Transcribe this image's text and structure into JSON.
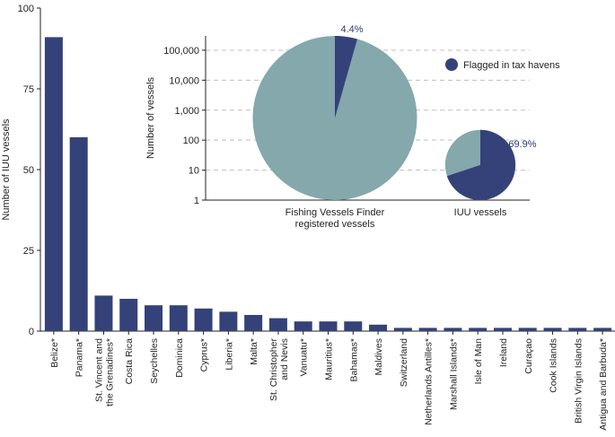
{
  "chart_data": [
    {
      "type": "bar",
      "ylabel": "Number of IUU vessels",
      "ylim": [
        0,
        100
      ],
      "yticks": [
        0,
        25,
        50,
        75,
        100
      ],
      "color": "#35427a",
      "categories": [
        "Belize*",
        "Panama*",
        "St. Vincent and|the Grenadines*",
        "Costa Rica",
        "Seychelles",
        "Dominica",
        "Cyprus*",
        "Liberia*",
        "Malta*",
        "St. Christopher|and Nevis",
        "Vanuatu*",
        "Mauritius*",
        "Bahamas*",
        "Maldives",
        "Switzerland",
        "Netherlands Antilles*",
        "Marshall Islands*",
        "Isle of Man",
        "Ireland",
        "Curaçao",
        "Cook Islands",
        "British Virgin Islands",
        "Antigua and Barbuda*"
      ],
      "values": [
        91,
        60,
        11,
        10,
        8,
        8,
        7,
        6,
        5,
        4,
        3,
        3,
        3,
        2,
        1,
        1,
        1,
        1,
        1,
        1,
        1,
        1,
        1
      ]
    },
    {
      "type": "pie",
      "ylabel": "Number of vessels",
      "yscale": "log",
      "ylim": [
        1,
        300000
      ],
      "yticks": [
        "1",
        "10",
        "100",
        "1,000",
        "10,000",
        "100,000"
      ],
      "grid": true,
      "legend": {
        "label": "Flagged in tax havens",
        "position": "top-right"
      },
      "colors": {
        "tax_haven": "#35427a",
        "other": "#84a8ab"
      },
      "series": [
        {
          "label": "Fishing Vessels Finder|registered vessels",
          "total": 300000,
          "tax_haven_pct": 4.4,
          "pct_label": "4.4%"
        },
        {
          "label": "IUU vessels",
          "total": 220,
          "tax_haven_pct": 69.9,
          "pct_label": "69.9%"
        }
      ]
    }
  ]
}
